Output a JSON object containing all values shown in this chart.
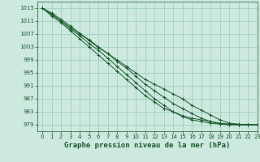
{
  "title": "Graphe pression niveau de la mer (hPa)",
  "background_color": "#cce8df",
  "grid_color": "#99ccbb",
  "line_color": "#1a5c2a",
  "xlim": [
    -0.5,
    23
  ],
  "ylim": [
    977,
    1017
  ],
  "yticks": [
    979,
    983,
    987,
    991,
    995,
    999,
    1003,
    1007,
    1011,
    1015
  ],
  "xticks": [
    0,
    1,
    2,
    3,
    4,
    5,
    6,
    7,
    8,
    9,
    10,
    11,
    12,
    13,
    14,
    15,
    16,
    17,
    18,
    19,
    20,
    21,
    22,
    23
  ],
  "series": [
    [
      1015,
      1013.2,
      1011.0,
      1009.0,
      1007.0,
      1005.0,
      1002.8,
      1001.0,
      999.0,
      997.0,
      995.0,
      993.0,
      991.5,
      990.0,
      988.5,
      987.0,
      985.0,
      983.5,
      982.0,
      980.5,
      979.5,
      979.2,
      979.0,
      979.0
    ],
    [
      1015,
      1013.5,
      1011.5,
      1009.5,
      1007.2,
      1005.2,
      1003.0,
      1001.0,
      998.5,
      996.5,
      994.0,
      991.5,
      989.5,
      987.5,
      985.5,
      984.0,
      982.5,
      981.0,
      980.0,
      979.2,
      979.0,
      979.0,
      979.0,
      979.0
    ],
    [
      1015,
      1013.0,
      1011.0,
      1008.5,
      1006.5,
      1004.0,
      1002.0,
      999.5,
      997.0,
      994.5,
      992.0,
      989.5,
      987.0,
      985.0,
      983.0,
      981.5,
      980.5,
      980.0,
      979.5,
      979.2,
      979.0,
      979.0,
      979.0,
      979.0
    ],
    [
      1015,
      1012.5,
      1010.5,
      1008.0,
      1005.5,
      1003.0,
      1000.5,
      998.0,
      995.5,
      993.0,
      990.5,
      988.0,
      986.0,
      984.0,
      983.0,
      981.8,
      981.0,
      980.5,
      980.0,
      979.5,
      979.2,
      979.0,
      979.0,
      979.0
    ]
  ],
  "marker": "+",
  "markersize": 3,
  "linewidth": 0.7,
  "title_fontsize": 6.5,
  "tick_fontsize": 5.0
}
